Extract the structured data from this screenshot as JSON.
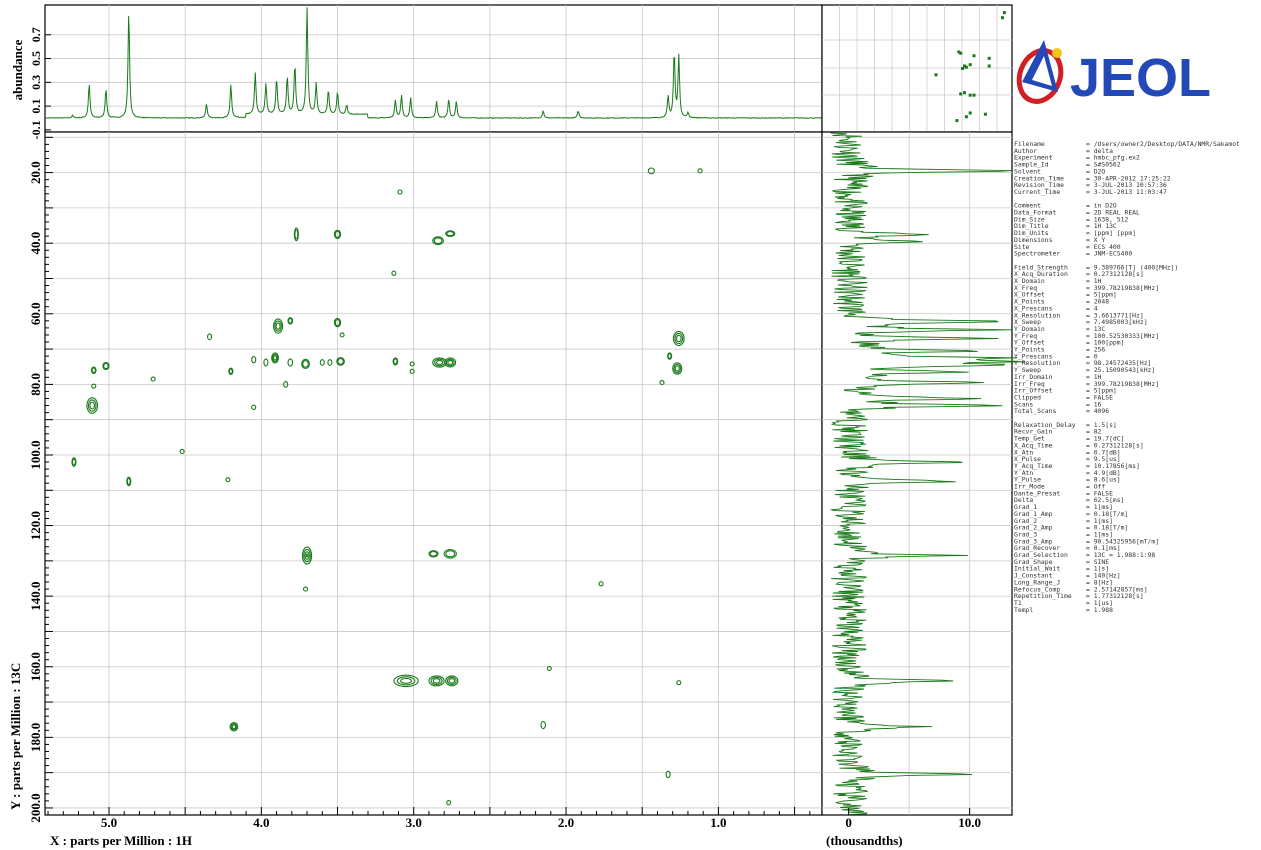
{
  "chart_data": {
    "type": "2D NMR contour (HMBC)",
    "x_axis": {
      "label": "X : parts per Million : 1H",
      "range": [
        5.42,
        0.32
      ],
      "ticks": [
        5.0,
        4.0,
        3.0,
        2.0,
        1.0
      ],
      "tick_labels": [
        "5.0",
        "4.0",
        "3.0",
        "2.0",
        "1.0"
      ]
    },
    "y_axis": {
      "label": "Y : parts per Million : 13C",
      "range": [
        8.5,
        202.0
      ],
      "ticks": [
        20,
        40,
        60,
        80,
        100,
        120,
        140,
        160,
        180,
        200
      ],
      "tick_labels": [
        "20.0",
        "40.0",
        "60.0",
        "80.0",
        "100.0",
        "120.0",
        "140.0",
        "160.0",
        "180.0",
        "200.0"
      ]
    },
    "top_projection": {
      "ylabel": "abundance",
      "tick_labels": [
        "-0.1",
        "0.1",
        "0.3",
        "0.5",
        "0.7"
      ],
      "peaks": [
        {
          "ppm": 5.24,
          "h": 0.02
        },
        {
          "ppm": 5.13,
          "h": 0.29
        },
        {
          "ppm": 5.02,
          "h": 0.25
        },
        {
          "ppm": 4.87,
          "h": 0.9
        },
        {
          "ppm": 4.36,
          "h": 0.12
        },
        {
          "ppm": 4.2,
          "h": 0.28
        },
        {
          "ppm": 4.04,
          "h": 0.35
        },
        {
          "ppm": 3.97,
          "h": 0.26
        },
        {
          "ppm": 3.9,
          "h": 0.3
        },
        {
          "ppm": 3.83,
          "h": 0.32
        },
        {
          "ppm": 3.78,
          "h": 0.42
        },
        {
          "ppm": 3.7,
          "h": 0.9
        },
        {
          "ppm": 3.64,
          "h": 0.26
        },
        {
          "ppm": 3.56,
          "h": 0.2
        },
        {
          "ppm": 3.5,
          "h": 0.19
        },
        {
          "ppm": 3.44,
          "h": 0.08
        },
        {
          "ppm": 3.12,
          "h": 0.15
        },
        {
          "ppm": 3.08,
          "h": 0.19
        },
        {
          "ppm": 3.02,
          "h": 0.17
        },
        {
          "ppm": 2.85,
          "h": 0.14
        },
        {
          "ppm": 2.77,
          "h": 0.16
        },
        {
          "ppm": 2.72,
          "h": 0.14
        },
        {
          "ppm": 2.15,
          "h": 0.06
        },
        {
          "ppm": 1.92,
          "h": 0.06
        },
        {
          "ppm": 1.33,
          "h": 0.18
        },
        {
          "ppm": 1.29,
          "h": 0.55
        },
        {
          "ppm": 1.26,
          "h": 0.52
        },
        {
          "ppm": 1.2,
          "h": 0.04
        }
      ]
    },
    "side_projection": {
      "xlabel": "(thousandths)",
      "tick_labels": [
        "0",
        "10.0"
      ],
      "range": [
        -2.2,
        13.5
      ],
      "peaks": [
        {
          "ppm": 19.5,
          "v": 13.2
        },
        {
          "ppm": 37.5,
          "v": 6.2
        },
        {
          "ppm": 39.5,
          "v": 6.5
        },
        {
          "ppm": 62.2,
          "v": 12.8
        },
        {
          "ppm": 64.5,
          "v": 11.5
        },
        {
          "ppm": 67.0,
          "v": 12.0
        },
        {
          "ppm": 70.5,
          "v": 10.0
        },
        {
          "ppm": 72.5,
          "v": 13.0
        },
        {
          "ppm": 73.5,
          "v": 12.5
        },
        {
          "ppm": 74.5,
          "v": 11.8
        },
        {
          "ppm": 76.5,
          "v": 8.5
        },
        {
          "ppm": 79.5,
          "v": 12.0
        },
        {
          "ppm": 84.0,
          "v": 11.0
        },
        {
          "ppm": 86.0,
          "v": 13.0
        },
        {
          "ppm": 102.0,
          "v": 10.5
        },
        {
          "ppm": 107.5,
          "v": 9.8
        },
        {
          "ppm": 128.5,
          "v": 8.8
        },
        {
          "ppm": 164.0,
          "v": 9.8
        },
        {
          "ppm": 177.0,
          "v": 7.0
        },
        {
          "ppm": 190.5,
          "v": 10.5
        }
      ]
    },
    "cross_peaks": [
      {
        "x": 1.44,
        "y": 19.5,
        "w": 0.02,
        "h": 0.8,
        "n": 1
      },
      {
        "x": 1.12,
        "y": 19.5,
        "w": 0.008,
        "h": 0.5,
        "n": 1
      },
      {
        "x": 3.09,
        "y": 25.5,
        "w": 0.008,
        "h": 0.6,
        "n": 1
      },
      {
        "x": 3.77,
        "y": 37.5,
        "w": 0.012,
        "h": 1.8,
        "n": 2
      },
      {
        "x": 3.5,
        "y": 37.5,
        "w": 0.02,
        "h": 1.2,
        "n": 2
      },
      {
        "x": 2.84,
        "y": 39.3,
        "w": 0.035,
        "h": 1.1,
        "n": 2
      },
      {
        "x": 2.76,
        "y": 37.3,
        "w": 0.03,
        "h": 0.8,
        "n": 2
      },
      {
        "x": 3.13,
        "y": 48.5,
        "w": 0.006,
        "h": 0.6,
        "n": 1
      },
      {
        "x": 3.89,
        "y": 63.5,
        "w": 0.03,
        "h": 2.0,
        "n": 3
      },
      {
        "x": 3.81,
        "y": 62.0,
        "w": 0.015,
        "h": 0.9,
        "n": 2
      },
      {
        "x": 3.5,
        "y": 62.5,
        "w": 0.02,
        "h": 1.2,
        "n": 2
      },
      {
        "x": 1.26,
        "y": 67.0,
        "w": 0.035,
        "h": 2.0,
        "n": 3
      },
      {
        "x": 4.34,
        "y": 66.5,
        "w": 0.012,
        "h": 0.8,
        "n": 1
      },
      {
        "x": 3.47,
        "y": 66.0,
        "w": 0.005,
        "h": 0.4,
        "n": 1
      },
      {
        "x": 3.91,
        "y": 72.5,
        "w": 0.022,
        "h": 1.4,
        "n": 3
      },
      {
        "x": 4.05,
        "y": 73.0,
        "w": 0.01,
        "h": 0.9,
        "n": 1
      },
      {
        "x": 3.97,
        "y": 73.8,
        "w": 0.012,
        "h": 1.0,
        "n": 1
      },
      {
        "x": 3.81,
        "y": 73.8,
        "w": 0.015,
        "h": 1.0,
        "n": 1
      },
      {
        "x": 3.71,
        "y": 74.2,
        "w": 0.025,
        "h": 1.3,
        "n": 2
      },
      {
        "x": 3.6,
        "y": 73.8,
        "w": 0.01,
        "h": 0.8,
        "n": 1
      },
      {
        "x": 3.55,
        "y": 73.8,
        "w": 0.01,
        "h": 0.8,
        "n": 1
      },
      {
        "x": 3.48,
        "y": 73.5,
        "w": 0.025,
        "h": 1.1,
        "n": 2
      },
      {
        "x": 3.12,
        "y": 73.5,
        "w": 0.015,
        "h": 1.0,
        "n": 2
      },
      {
        "x": 3.01,
        "y": 74.2,
        "w": 0.005,
        "h": 0.5,
        "n": 1
      },
      {
        "x": 2.83,
        "y": 73.8,
        "w": 0.045,
        "h": 1.3,
        "n": 3
      },
      {
        "x": 2.76,
        "y": 73.8,
        "w": 0.035,
        "h": 1.3,
        "n": 3
      },
      {
        "x": 1.32,
        "y": 72.0,
        "w": 0.012,
        "h": 0.9,
        "n": 2
      },
      {
        "x": 1.27,
        "y": 75.5,
        "w": 0.03,
        "h": 1.6,
        "n": 3
      },
      {
        "x": 5.1,
        "y": 76.0,
        "w": 0.015,
        "h": 0.9,
        "n": 2
      },
      {
        "x": 5.02,
        "y": 74.8,
        "w": 0.02,
        "h": 1.0,
        "n": 2
      },
      {
        "x": 4.2,
        "y": 76.3,
        "w": 0.012,
        "h": 0.9,
        "n": 2
      },
      {
        "x": 3.01,
        "y": 76.3,
        "w": 0.004,
        "h": 0.4,
        "n": 1
      },
      {
        "x": 4.71,
        "y": 78.5,
        "w": 0.004,
        "h": 0.5,
        "n": 1
      },
      {
        "x": 3.84,
        "y": 80.0,
        "w": 0.012,
        "h": 0.8,
        "n": 1
      },
      {
        "x": 5.1,
        "y": 80.5,
        "w": 0.005,
        "h": 0.5,
        "n": 1
      },
      {
        "x": 1.37,
        "y": 79.5,
        "w": 0.004,
        "h": 0.4,
        "n": 1
      },
      {
        "x": 5.11,
        "y": 86.0,
        "w": 0.035,
        "h": 2.2,
        "n": 3
      },
      {
        "x": 4.05,
        "y": 86.5,
        "w": 0.007,
        "h": 0.6,
        "n": 1
      },
      {
        "x": 5.23,
        "y": 102.0,
        "w": 0.012,
        "h": 1.2,
        "n": 2
      },
      {
        "x": 4.52,
        "y": 99.0,
        "w": 0.004,
        "h": 0.4,
        "n": 1
      },
      {
        "x": 4.87,
        "y": 107.5,
        "w": 0.012,
        "h": 1.2,
        "n": 2
      },
      {
        "x": 4.22,
        "y": 107.0,
        "w": 0.004,
        "h": 0.4,
        "n": 1
      },
      {
        "x": 3.7,
        "y": 128.5,
        "w": 0.03,
        "h": 2.4,
        "n": 4
      },
      {
        "x": 2.87,
        "y": 128.0,
        "w": 0.03,
        "h": 0.9,
        "n": 2
      },
      {
        "x": 2.76,
        "y": 128.0,
        "w": 0.04,
        "h": 1.2,
        "n": 2
      },
      {
        "x": 1.77,
        "y": 136.5,
        "w": 0.008,
        "h": 0.6,
        "n": 1
      },
      {
        "x": 3.71,
        "y": 138.0,
        "w": 0.006,
        "h": 0.5,
        "n": 1
      },
      {
        "x": 3.05,
        "y": 164.0,
        "w": 0.08,
        "h": 1.6,
        "n": 3
      },
      {
        "x": 2.85,
        "y": 164.0,
        "w": 0.05,
        "h": 1.4,
        "n": 3
      },
      {
        "x": 2.75,
        "y": 164.0,
        "w": 0.04,
        "h": 1.4,
        "n": 3
      },
      {
        "x": 2.11,
        "y": 160.5,
        "w": 0.004,
        "h": 0.4,
        "n": 1
      },
      {
        "x": 1.26,
        "y": 164.5,
        "w": 0.004,
        "h": 0.4,
        "n": 1
      },
      {
        "x": 4.18,
        "y": 177.0,
        "w": 0.025,
        "h": 1.2,
        "n": 3
      },
      {
        "x": 2.15,
        "y": 176.5,
        "w": 0.015,
        "h": 1.0,
        "n": 1
      },
      {
        "x": 1.33,
        "y": 190.5,
        "w": 0.01,
        "h": 0.9,
        "n": 1
      },
      {
        "x": 2.77,
        "y": 198.5,
        "w": 0.004,
        "h": 0.6,
        "n": 1
      }
    ],
    "mini_map_spots": [
      {
        "u": 0.95,
        "v": 0.1
      },
      {
        "u": 0.96,
        "v": 0.06
      },
      {
        "u": 0.72,
        "v": 0.37
      },
      {
        "u": 0.73,
        "v": 0.38
      },
      {
        "u": 0.8,
        "v": 0.4
      },
      {
        "u": 0.75,
        "v": 0.48
      },
      {
        "u": 0.76,
        "v": 0.49
      },
      {
        "u": 0.74,
        "v": 0.5
      },
      {
        "u": 0.78,
        "v": 0.47
      },
      {
        "u": 0.88,
        "v": 0.48
      },
      {
        "u": 0.88,
        "v": 0.42
      },
      {
        "u": 0.73,
        "v": 0.7
      },
      {
        "u": 0.75,
        "v": 0.69
      },
      {
        "u": 0.78,
        "v": 0.71
      },
      {
        "u": 0.8,
        "v": 0.71
      },
      {
        "u": 0.76,
        "v": 0.88
      },
      {
        "u": 0.78,
        "v": 0.85
      },
      {
        "u": 0.86,
        "v": 0.86
      },
      {
        "u": 0.6,
        "v": 0.55
      },
      {
        "u": 0.71,
        "v": 0.91
      }
    ],
    "color": "#1a7a1a"
  },
  "parameters": [
    [
      "Filename",
      "= /Users/owner2/Desktop/DATA/NMR/Sakamot"
    ],
    [
      "Author",
      "= delta"
    ],
    [
      "Experiment",
      "= hmbc_pfg.ex2"
    ],
    [
      "Sample_Id",
      "= S#S0562"
    ],
    [
      "Solvent",
      "= D2O"
    ],
    [
      "Creation_Time",
      "= 30-APR-2012 17:25:22"
    ],
    [
      "Revision_Time",
      "= 3-JUL-2013 10:57:36"
    ],
    [
      "Current_Time",
      "= 3-JUL-2013 11:03:47"
    ],
    [
      "",
      ""
    ],
    [
      "Comment",
      "= in D2O"
    ],
    [
      "Data_Format",
      "= 2D REAL REAL"
    ],
    [
      "Dim_Size",
      "= 1638, 512"
    ],
    [
      "Dim_Title",
      "= 1H 13C"
    ],
    [
      "Dim_Units",
      "= [ppm] [ppm]"
    ],
    [
      "Dimensions",
      "= X Y"
    ],
    [
      "Site",
      "= ECS 400"
    ],
    [
      "Spectrometer",
      "= JNM-ECS400"
    ],
    [
      "",
      ""
    ],
    [
      "Field_Strength",
      "= 9.389766[T] (400[MHz])"
    ],
    [
      "X_Acq_Duration",
      "= 0.27312128[s]"
    ],
    [
      "X_Domain",
      "= 1H"
    ],
    [
      "X_Freq",
      "= 399.78219838[MHz]"
    ],
    [
      "X_Offset",
      "= 5[ppm]"
    ],
    [
      "X_Points",
      "= 2048"
    ],
    [
      "X_Prescans",
      "= 4"
    ],
    [
      "X_Resolution",
      "= 3.6613771[Hz]"
    ],
    [
      "X_Sweep",
      "= 7.4985003[kHz]"
    ],
    [
      "Y_Domain",
      "= 13C"
    ],
    [
      "Y_Freq",
      "= 100.52530333[MHz]"
    ],
    [
      "Y_Offset",
      "= 100[ppm]"
    ],
    [
      "Y_Points",
      "= 256"
    ],
    [
      "Y_Prescans",
      "= 0"
    ],
    [
      "Y_Resolution",
      "= 98.24572435[Hz]"
    ],
    [
      "Y_Sweep",
      "= 25.15090543[kHz]"
    ],
    [
      "Irr_Domain",
      "= 1H"
    ],
    [
      "Irr_Freq",
      "= 399.78219838[MHz]"
    ],
    [
      "Irr_Offset",
      "= 5[ppm]"
    ],
    [
      "Clipped",
      "= FALSE"
    ],
    [
      "Scans",
      "= 16"
    ],
    [
      "Total_Scans",
      "= 4096"
    ],
    [
      "",
      ""
    ],
    [
      "Relaxation_Delay",
      "= 1.5[s]"
    ],
    [
      "Recvr_Gain",
      "= 82"
    ],
    [
      "Temp_Get",
      "= 19.7[dC]"
    ],
    [
      "X_Acq_Time",
      "= 0.27312128[s]"
    ],
    [
      "X_Atn",
      "= 0.7[dB]"
    ],
    [
      "X_Pulse",
      "= 9.5[us]"
    ],
    [
      "Y_Acq_Time",
      "= 10.17856[ms]"
    ],
    [
      "Y_Atn",
      "= 4.9[dB]"
    ],
    [
      "Y_Pulse",
      "= 8.6[us]"
    ],
    [
      "Irr_Mode",
      "= Off"
    ],
    [
      "Dante_Presat",
      "= FALSE"
    ],
    [
      "Delta",
      "= 62.5[ms]"
    ],
    [
      "Grad_1",
      "= 1[ms]"
    ],
    [
      "Grad_1_Amp",
      "= 0.18[T/m]"
    ],
    [
      "Grad_2",
      "= 1[ms]"
    ],
    [
      "Grad_2_Amp",
      "= 0.18[T/m]"
    ],
    [
      "Grad_3",
      "= 1[ms]"
    ],
    [
      "Grad_3_Amp",
      "= 90.54325956[mT/m]"
    ],
    [
      "Grad_Recover",
      "= 0.1[ms]"
    ],
    [
      "Grad_Selection",
      "= 13C = 1.988:1:98"
    ],
    [
      "Grad_Shape",
      "= SINE"
    ],
    [
      "Initial_Wait",
      "= 1[s]"
    ],
    [
      "J_Constant",
      "= 140[Hz]"
    ],
    [
      "Long_Range_J",
      "= 8[Hz]"
    ],
    [
      "Refocus_Comp",
      "= 2.57142857[ms]"
    ],
    [
      "Repetition_Time",
      "= 1.77312128[s]"
    ],
    [
      "T1",
      "= 1[us]"
    ],
    [
      "Templ",
      "= 1.988"
    ]
  ],
  "logo": {
    "text": "JEOL"
  }
}
